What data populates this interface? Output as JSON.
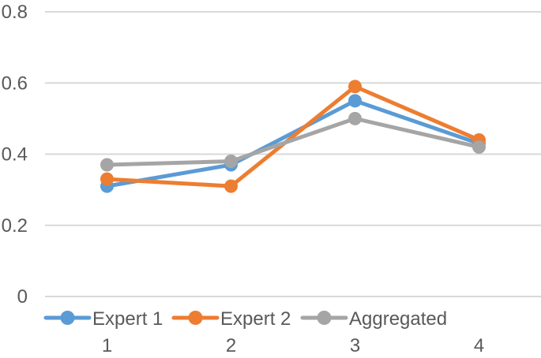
{
  "chart_data": {
    "type": "line",
    "title": "",
    "xlabel": "",
    "ylabel": "",
    "categories": [
      "1",
      "2",
      "3",
      "4"
    ],
    "series": [
      {
        "name": "Expert 1",
        "color": "#5B9BD5",
        "marker": "circle",
        "values": [
          0.31,
          0.37,
          0.55,
          0.43
        ]
      },
      {
        "name": "Expert 2",
        "color": "#ED7D31",
        "marker": "circle",
        "values": [
          0.33,
          0.31,
          0.59,
          0.44
        ]
      },
      {
        "name": "Aggregated",
        "color": "#A5A5A5",
        "marker": "circle",
        "values": [
          0.37,
          0.38,
          0.5,
          0.42
        ]
      }
    ],
    "ylim": [
      0,
      0.8
    ],
    "yticks": [
      0,
      0.2,
      0.4,
      0.6,
      0.8
    ],
    "ytick_labels": [
      "0",
      "0.2",
      "0.4",
      "0.6",
      "0.8"
    ],
    "grid": true,
    "legend_position": "bottom"
  },
  "styles": {
    "gridline_color": "#D9D9D9",
    "axis_text_color": "#595959",
    "background_color": "#FFFFFF"
  }
}
